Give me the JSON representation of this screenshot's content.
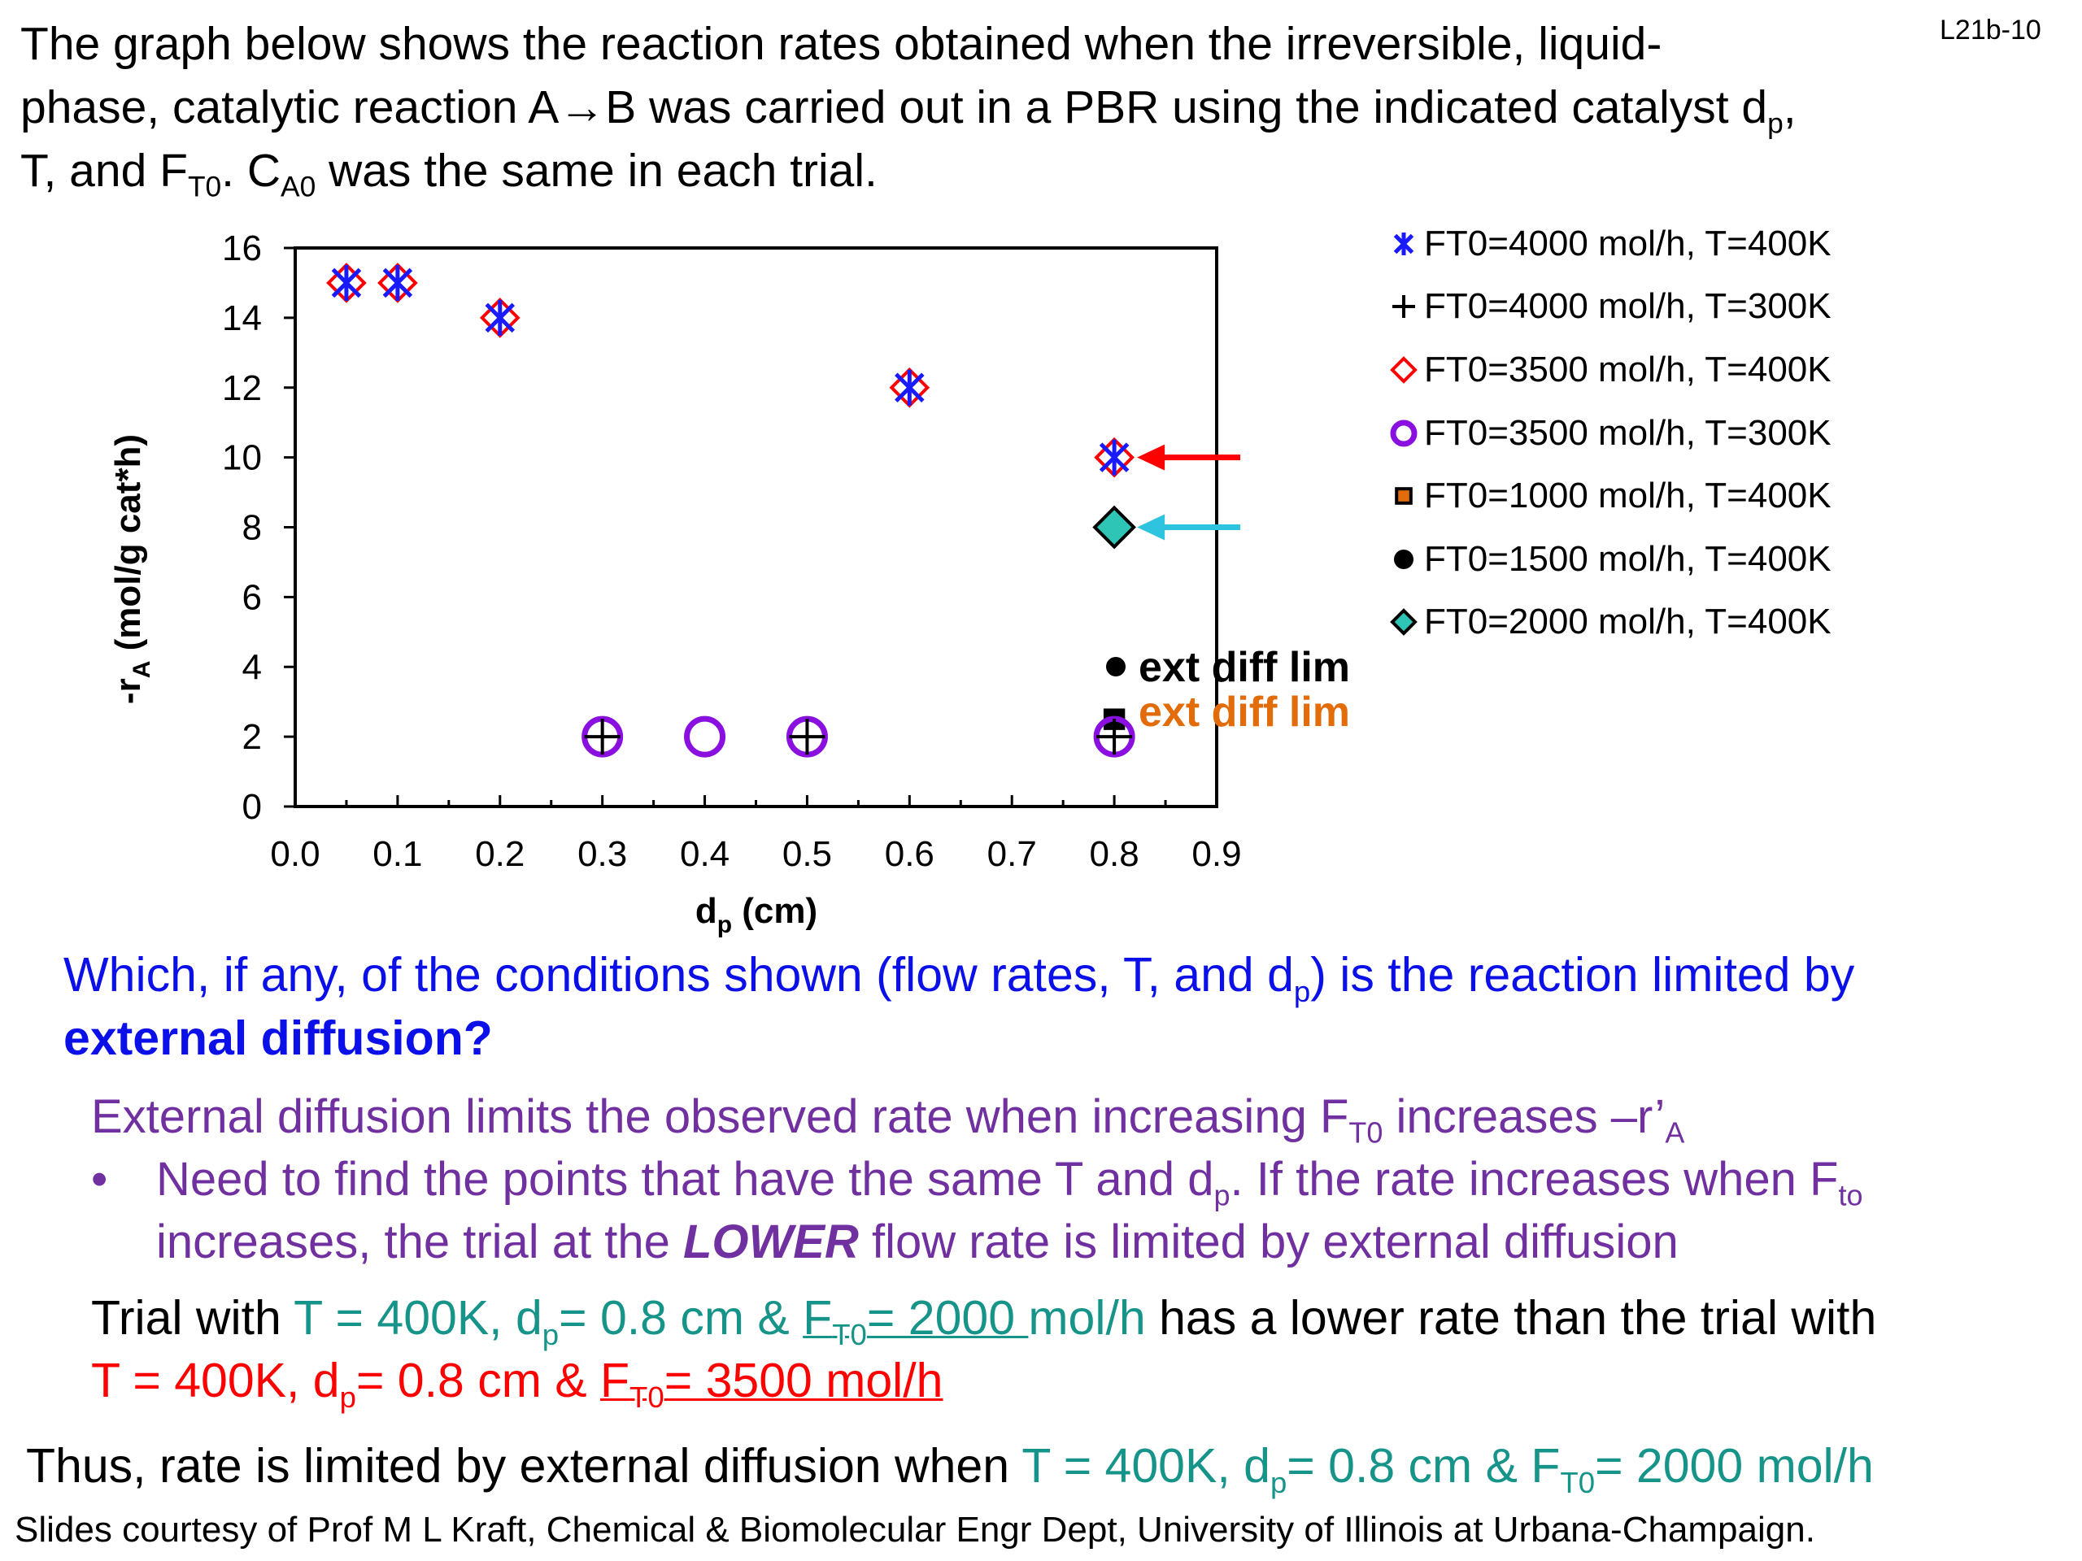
{
  "slide_id": "L21b-10",
  "problem": {
    "line1": "The graph below shows the reaction rates obtained when the irreversible, liquid-",
    "line2_a": "phase, catalytic reaction A→B was carried out in a PBR using the indicated catalyst d",
    "line2_sub": "p",
    "line2_b": ",",
    "line3_a": "T, and F",
    "line3_sub1": "T0",
    "line3_b": ". C",
    "line3_sub2": "A0",
    "line3_c": " was the same in each trial."
  },
  "chart_data": {
    "type": "scatter",
    "xlabel": "d",
    "xlabel_sub": "p",
    "xlabel_unit": " (cm)",
    "ylabel": "-r",
    "ylabel_sub": "A",
    "ylabel_unit": " (mol/g cat*h)",
    "xlim": [
      0.0,
      0.9
    ],
    "ylim": [
      0,
      16
    ],
    "xticks": [
      "0.0",
      "0.1",
      "0.2",
      "0.3",
      "0.4",
      "0.5",
      "0.6",
      "0.7",
      "0.8",
      "0.9"
    ],
    "yticks": [
      "0",
      "2",
      "4",
      "6",
      "8",
      "10",
      "12",
      "14",
      "16"
    ],
    "grid": false,
    "legend_position": "right",
    "series": [
      {
        "name": "FT0=4000 mol/h, T=400K",
        "marker": "asterisk",
        "color": "#1a1aff",
        "points": [
          [
            0.05,
            15
          ],
          [
            0.1,
            15
          ],
          [
            0.2,
            14
          ],
          [
            0.6,
            12
          ],
          [
            0.8,
            10
          ]
        ]
      },
      {
        "name": "FT0=4000 mol/h, T=300K",
        "marker": "plus",
        "color": "#000000",
        "points": [
          [
            0.3,
            2
          ],
          [
            0.5,
            2
          ],
          [
            0.8,
            2
          ]
        ]
      },
      {
        "name": "FT0=3500 mol/h, T=400K",
        "marker": "diamond-open",
        "color": "#ff0000",
        "points": [
          [
            0.05,
            15
          ],
          [
            0.1,
            15
          ],
          [
            0.2,
            14
          ],
          [
            0.6,
            12
          ],
          [
            0.8,
            10
          ]
        ]
      },
      {
        "name": "FT0=3500 mol/h, T=300K",
        "marker": "circle-open",
        "color": "#8a10e0",
        "points": [
          [
            0.3,
            2
          ],
          [
            0.4,
            2
          ],
          [
            0.5,
            2
          ],
          [
            0.8,
            2
          ]
        ]
      },
      {
        "name": "FT0=1000 mol/h, T=400K",
        "marker": "square",
        "color": "#e26b0a",
        "points": [
          [
            0.8,
            2.5
          ]
        ]
      },
      {
        "name": "FT0=1500 mol/h, T=400K",
        "marker": "circle",
        "color": "#000000",
        "points": [
          [
            0.8,
            2.5
          ]
        ]
      },
      {
        "name": "FT0=2000 mol/h, T=400K",
        "marker": "diamond",
        "color": "#2ec4b6",
        "points": [
          [
            0.8,
            8
          ]
        ]
      }
    ],
    "annotations": [
      {
        "text": "ext diff lim",
        "color": "#000000"
      },
      {
        "text": "ext diff lim",
        "color": "#e26b0a"
      }
    ],
    "arrows": [
      {
        "target": [
          0.8,
          10
        ],
        "color": "#ff0000"
      },
      {
        "target": [
          0.8,
          8
        ],
        "color": "#2ec4e0"
      }
    ]
  },
  "question": {
    "line1_a": "Which, if any, of the conditions shown (flow rates, T, and d",
    "line1_sub": "p",
    "line1_b": ") is the reaction limited by",
    "line2": "external diffusion?"
  },
  "explanation": {
    "line1_a": "External diffusion limits the observed rate when increasing F",
    "line1_sub1": "T0",
    "line1_b": " increases –r’",
    "line1_sub2": "A",
    "bullet": "•",
    "line2_a": "Need to find the points that have the same T and d",
    "line2_sub1": "p",
    "line2_b": ". If the rate increases when F",
    "line2_sub2": "to",
    "line3_a": "increases, the trial at the ",
    "line3_em": "LOWER",
    "line3_b": " flow rate is limited by external diffusion"
  },
  "trial": {
    "a": "Trial with ",
    "b": "T = 400K, d",
    "b_sub": "p",
    "c": "= 0.8 cm & ",
    "d": "F",
    "d_sub": "T0",
    "e": "= 2000 ",
    "f": "mol/h",
    "g": " has a lower rate than the trial with",
    "l2_a": "T = 400K, d",
    "l2_sub": "p",
    "l2_b": "= 0.8 cm & ",
    "l2_c": "F",
    "l2_sub2": "T0",
    "l2_d": "= 3500 mol/h"
  },
  "conclusion": {
    "a": "Thus, rate is limited by external diffusion when ",
    "b": "T = 400K, d",
    "b_sub": "p",
    "c": "= 0.8 cm & F",
    "c_sub": "T0",
    "d": "= 2000 mol/h"
  },
  "footer": "Slides courtesy of Prof M L Kraft, Chemical & Biomolecular Engr Dept, University of Illinois at Urbana-Champaign."
}
